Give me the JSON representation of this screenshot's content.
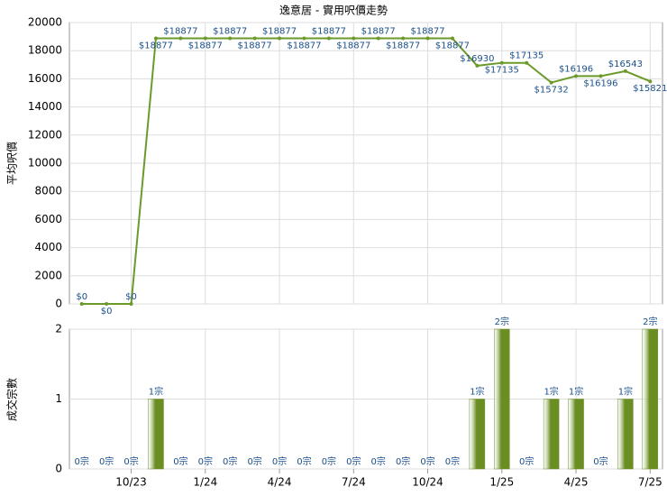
{
  "chart_data": [
    {
      "type": "line",
      "title": "逸意居 - 實用呎價走勢",
      "y_label": "平均呎價",
      "values": [
        0,
        0,
        0,
        18877,
        18877,
        18877,
        18877,
        18877,
        18877,
        18877,
        18877,
        18877,
        18877,
        18877,
        18877,
        18877,
        16930,
        17135,
        17135,
        15732,
        16196,
        16196,
        16543,
        15821
      ],
      "value_labels": [
        "$0",
        "$0",
        "$0",
        "$18877",
        "$18877",
        "$18877",
        "$18877",
        "$18877",
        "$18877",
        "$18877",
        "$18877",
        "$18877",
        "$18877",
        "$18877",
        "$18877",
        "$18877",
        "$16930",
        "$17135",
        "$17135",
        "$15732",
        "$16196",
        "$16196",
        "$16543",
        "$15821"
      ],
      "color": "#6b9a2a",
      "ylim": [
        0,
        20000
      ],
      "yticks": [
        0,
        2000,
        4000,
        6000,
        8000,
        10000,
        12000,
        14000,
        16000,
        18000,
        20000
      ],
      "grid": true
    },
    {
      "type": "bar",
      "y_label": "成交宗數",
      "categories": [
        null,
        null,
        "10/23",
        null,
        null,
        "1/24",
        null,
        null,
        "4/24",
        null,
        null,
        "7/24",
        null,
        null,
        "10/24",
        null,
        null,
        "1/25",
        null,
        null,
        "4/25",
        null,
        null,
        "7/25"
      ],
      "values": [
        0,
        0,
        0,
        1,
        0,
        0,
        0,
        0,
        0,
        0,
        0,
        0,
        0,
        0,
        0,
        0,
        1,
        2,
        0,
        1,
        1,
        0,
        1,
        2
      ],
      "value_labels": [
        "0宗",
        "0宗",
        "0宗",
        "1宗",
        "0宗",
        "0宗",
        "0宗",
        "0宗",
        "0宗",
        "0宗",
        "0宗",
        "0宗",
        "0宗",
        "0宗",
        "0宗",
        "0宗",
        "1宗",
        "2宗",
        "0宗",
        "1宗",
        "1宗",
        "0宗",
        "1宗",
        "2宗"
      ],
      "color": "#6b8e23",
      "ylim": [
        0,
        2
      ],
      "yticks": [
        0,
        1,
        2
      ],
      "grid": true
    }
  ]
}
